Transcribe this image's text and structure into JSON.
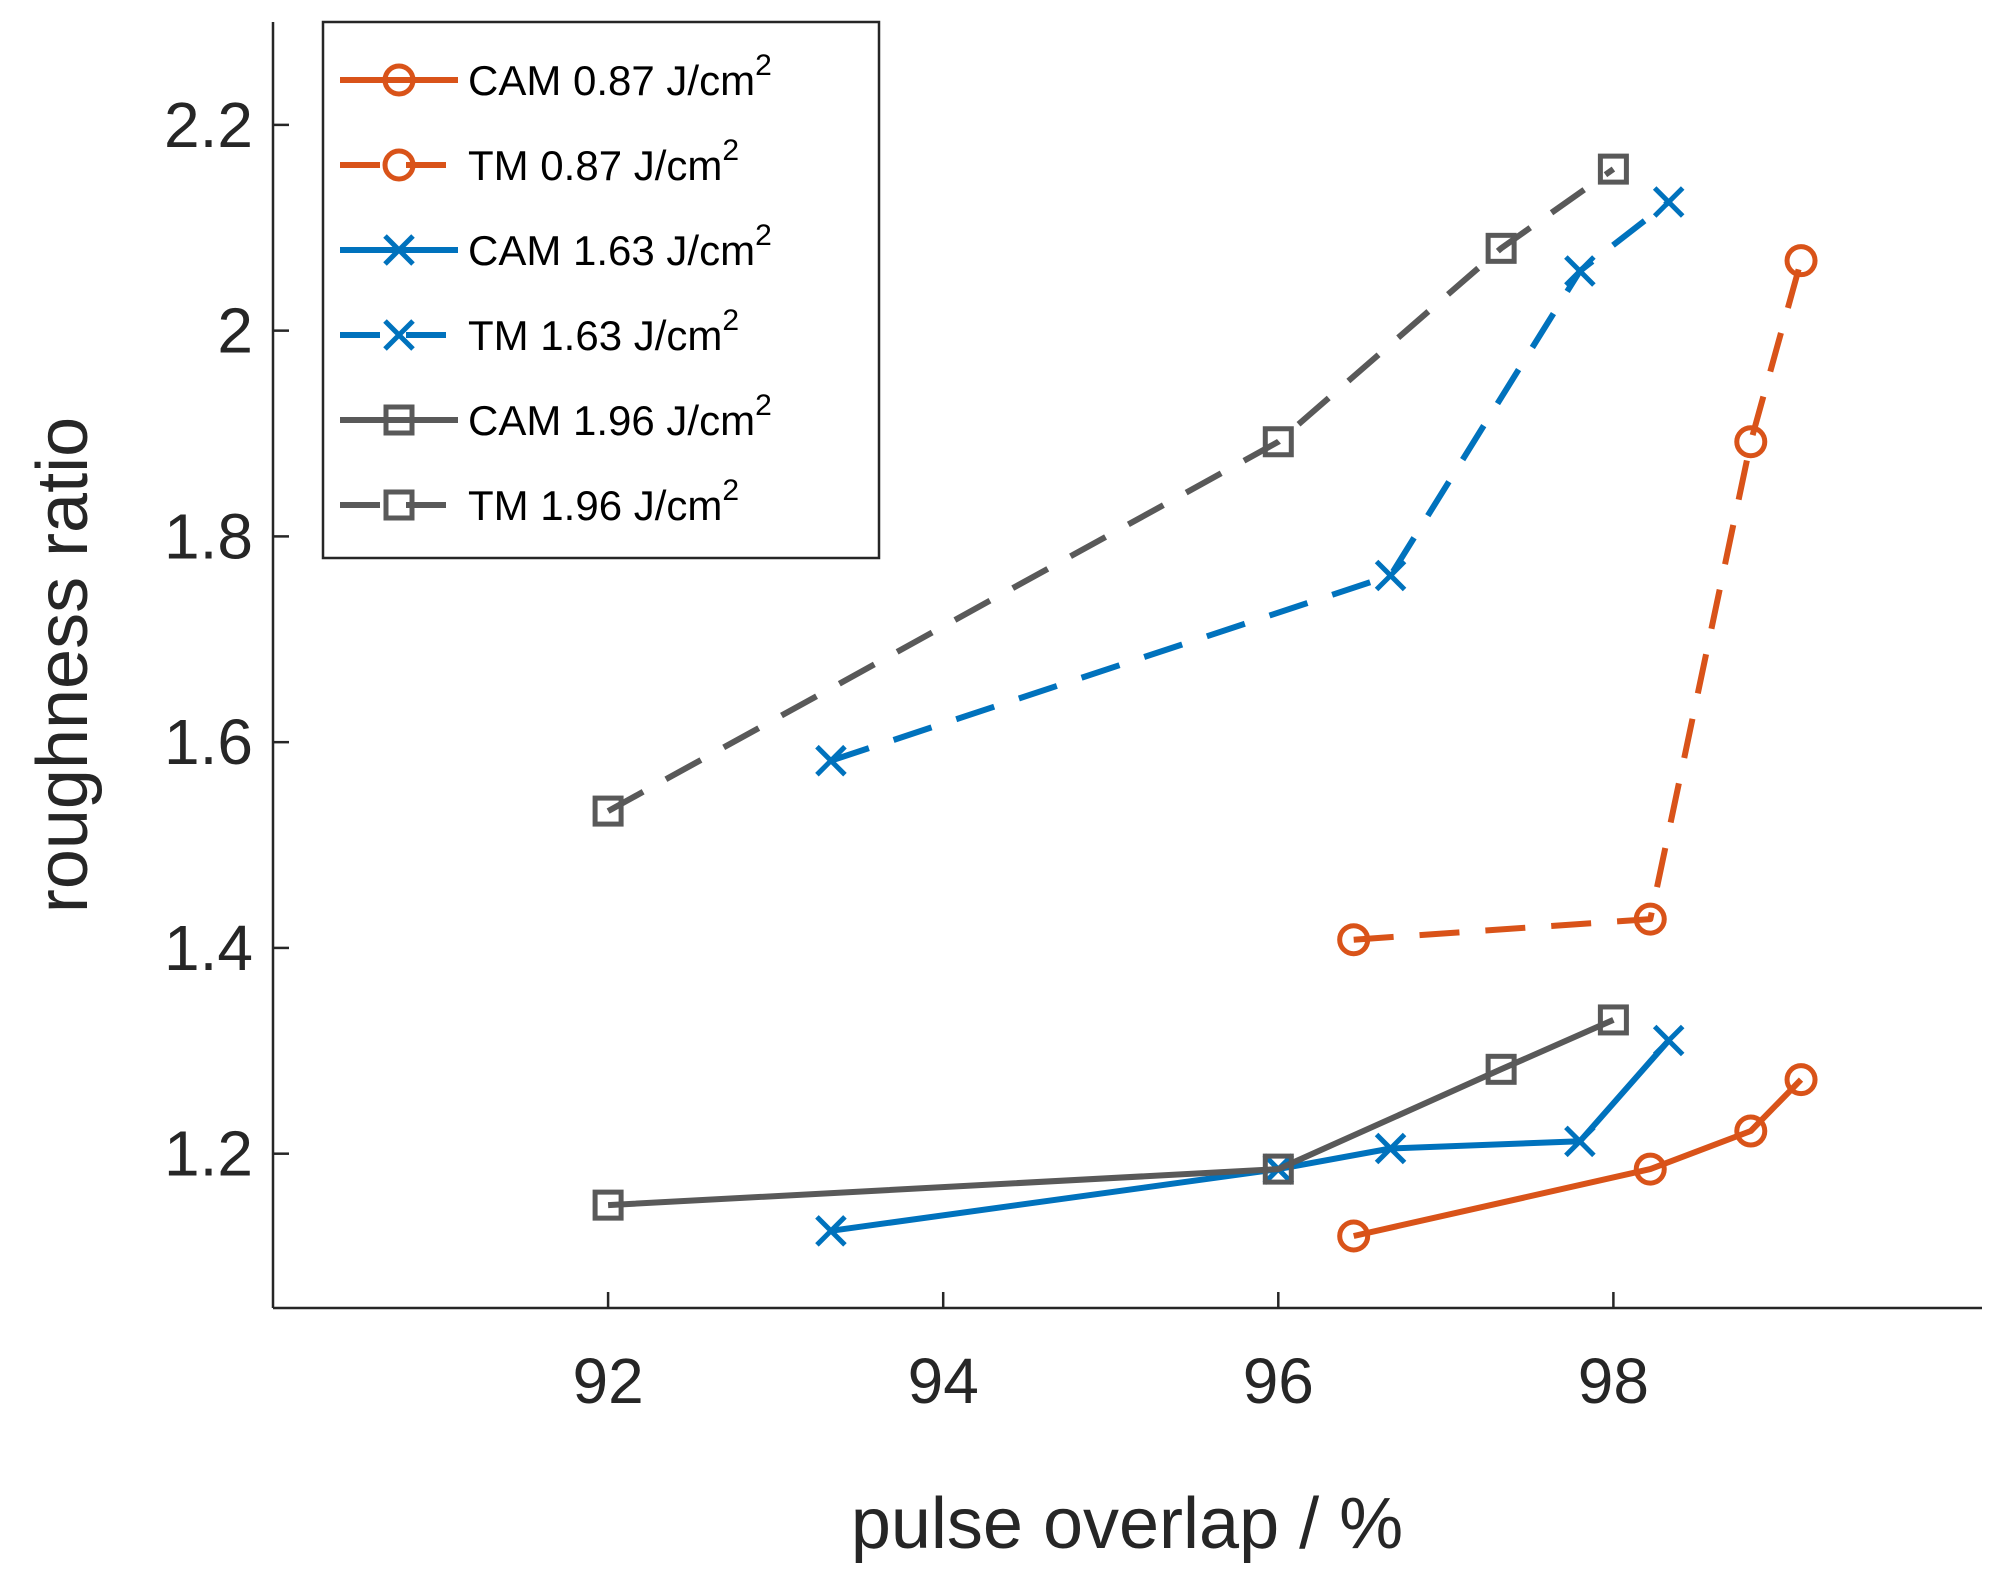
{
  "chart_data": {
    "type": "line",
    "title": "",
    "xlabel": "pulse overlap / %",
    "ylabel": "roughness ratio",
    "xlim": [
      90,
      100.2
    ],
    "ylim": [
      1.05,
      2.3
    ],
    "xticks": [
      92,
      94,
      96,
      98
    ],
    "yticks": [
      1.2,
      1.4,
      1.6,
      1.8,
      2.0,
      2.2
    ],
    "xtick_labels": [
      "92",
      "94",
      "96",
      "98"
    ],
    "ytick_labels": [
      "1.2",
      "1.4",
      "1.6",
      "1.8",
      "2",
      "2.2"
    ],
    "grid": false,
    "legend_position": "top-left",
    "series": [
      {
        "name": "CAM 0.87 J/cm",
        "name_sup": "2",
        "color": "#D95319",
        "line_style": "solid",
        "marker": "circle",
        "x": [
          96.45,
          98.22,
          98.82,
          99.12
        ],
        "y": [
          1.12,
          1.185,
          1.222,
          1.272
        ]
      },
      {
        "name": "TM 0.87 J/cm",
        "name_sup": "2",
        "color": "#D95319",
        "line_style": "dashed",
        "marker": "circle",
        "x": [
          96.45,
          98.22,
          98.82,
          99.12
        ],
        "y": [
          1.408,
          1.428,
          1.892,
          2.068
        ]
      },
      {
        "name": "CAM 1.63 J/cm",
        "name_sup": "2",
        "color": "#0072BD",
        "line_style": "solid",
        "marker": "x",
        "x": [
          93.33,
          96.0,
          96.67,
          97.8,
          98.33
        ],
        "y": [
          1.125,
          1.185,
          1.205,
          1.212,
          1.31
        ]
      },
      {
        "name": "TM 1.63 J/cm",
        "name_sup": "2",
        "color": "#0072BD",
        "line_style": "dashed",
        "marker": "x",
        "x": [
          93.33,
          96.67,
          97.8,
          98.33
        ],
        "y": [
          1.582,
          1.762,
          2.058,
          2.125
        ]
      },
      {
        "name": "CAM 1.96 J/cm",
        "name_sup": "2",
        "color": "#595959",
        "line_style": "solid",
        "marker": "square",
        "x": [
          92.0,
          96.0,
          97.33,
          98.0
        ],
        "y": [
          1.15,
          1.185,
          1.282,
          1.33
        ]
      },
      {
        "name": "TM 1.96 J/cm",
        "name_sup": "2",
        "color": "#595959",
        "line_style": "dashed",
        "marker": "square",
        "x": [
          92.0,
          96.0,
          97.33,
          98.0
        ],
        "y": [
          1.533,
          1.892,
          2.08,
          2.157
        ]
      }
    ]
  }
}
